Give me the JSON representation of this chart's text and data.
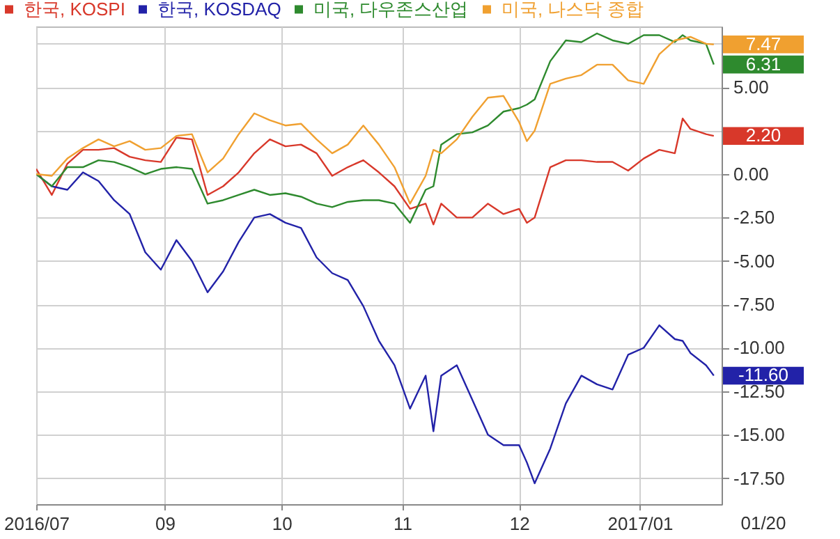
{
  "chart_data": {
    "type": "line",
    "x": [
      "2016-07-30",
      "2016-08-03",
      "2016-08-07",
      "2016-08-11",
      "2016-08-15",
      "2016-08-19",
      "2016-08-23",
      "2016-08-27",
      "2016-08-31",
      "2016-09-04",
      "2016-09-08",
      "2016-09-12",
      "2016-09-16",
      "2016-09-20",
      "2016-09-24",
      "2016-09-28",
      "2016-10-02",
      "2016-10-06",
      "2016-10-10",
      "2016-10-14",
      "2016-10-18",
      "2016-10-22",
      "2016-10-26",
      "2016-10-30",
      "2016-11-03",
      "2016-11-07",
      "2016-11-09",
      "2016-11-11",
      "2016-11-15",
      "2016-11-19",
      "2016-11-23",
      "2016-11-27",
      "2016-12-01",
      "2016-12-03",
      "2016-12-05",
      "2016-12-09",
      "2016-12-13",
      "2016-12-17",
      "2016-12-21",
      "2016-12-25",
      "2016-12-29",
      "2017-01-02",
      "2017-01-06",
      "2017-01-10",
      "2017-01-12",
      "2017-01-14",
      "2017-01-18",
      "2017-01-20"
    ],
    "series": [
      {
        "name": "한국, KOSPI",
        "color": "#d8382a",
        "values": [
          0.3,
          -1.2,
          0.6,
          1.4,
          1.4,
          1.5,
          1.0,
          0.8,
          0.7,
          2.1,
          2.0,
          -1.2,
          -0.7,
          0.1,
          1.2,
          2.0,
          1.6,
          1.7,
          1.2,
          -0.1,
          0.4,
          0.8,
          0.1,
          -0.7,
          -2.0,
          -1.7,
          -2.9,
          -1.7,
          -2.5,
          -2.5,
          -1.7,
          -2.3,
          -2.0,
          -2.8,
          -2.5,
          0.4,
          0.8,
          0.8,
          0.7,
          0.7,
          0.2,
          0.9,
          1.4,
          1.2,
          3.2,
          2.6,
          2.3,
          2.2
        ],
        "value_labels": [
          null,
          null,
          null,
          null,
          null,
          null,
          null,
          null,
          null,
          null,
          null,
          null,
          null,
          null,
          null,
          null,
          null,
          null,
          null,
          null,
          null,
          null,
          null,
          null,
          null,
          null,
          null,
          null,
          null,
          null,
          null,
          null,
          null,
          null,
          null,
          null,
          null,
          null,
          null,
          null,
          null,
          null,
          null,
          null,
          null,
          null,
          null,
          "2.20"
        ]
      },
      {
        "name": "한국, KOSDAQ",
        "color": "#2222a8",
        "values": [
          0,
          -0.7,
          -0.9,
          0.1,
          -0.4,
          -1.5,
          -2.3,
          -4.5,
          -5.5,
          -3.8,
          -5.0,
          -6.8,
          -5.6,
          -3.9,
          -2.5,
          -2.3,
          -2.8,
          -3.1,
          -4.8,
          -5.7,
          -6.1,
          -7.6,
          -9.6,
          -11.0,
          -13.5,
          -11.6,
          -14.8,
          -11.6,
          -11.0,
          -13.0,
          -15.0,
          -15.6,
          -15.6,
          -16.6,
          -17.8,
          -15.8,
          -13.2,
          -11.6,
          -12.1,
          -12.4,
          -10.4,
          -10.0,
          -8.7,
          -9.5,
          -9.6,
          -10.3,
          -11.0,
          -11.6
        ],
        "value_labels": [
          null,
          null,
          null,
          null,
          null,
          null,
          null,
          null,
          null,
          null,
          null,
          null,
          null,
          null,
          null,
          null,
          null,
          null,
          null,
          null,
          null,
          null,
          null,
          null,
          null,
          null,
          null,
          null,
          null,
          null,
          null,
          null,
          null,
          null,
          null,
          null,
          null,
          null,
          null,
          null,
          null,
          null,
          null,
          null,
          null,
          null,
          null,
          "-11.60"
        ]
      },
      {
        "name": "미국, 다우존스산업",
        "color": "#2e8a2e",
        "values": [
          0,
          -0.7,
          0.4,
          0.4,
          0.8,
          0.7,
          0.4,
          0,
          0.3,
          0.4,
          0.3,
          -1.7,
          -1.5,
          -1.2,
          -0.9,
          -1.2,
          -1.1,
          -1.3,
          -1.7,
          -1.9,
          -1.6,
          -1.5,
          -1.5,
          -1.7,
          -2.8,
          -0.9,
          -0.7,
          1.7,
          2.3,
          2.4,
          2.8,
          3.6,
          3.8,
          4.0,
          4.3,
          6.5,
          7.7,
          7.6,
          8.1,
          7.7,
          7.5,
          8.0,
          8.0,
          7.6,
          8.0,
          7.7,
          7.5,
          6.31
        ],
        "value_labels": [
          null,
          null,
          null,
          null,
          null,
          null,
          null,
          null,
          null,
          null,
          null,
          null,
          null,
          null,
          null,
          null,
          null,
          null,
          null,
          null,
          null,
          null,
          null,
          null,
          null,
          null,
          null,
          null,
          null,
          null,
          null,
          null,
          null,
          null,
          null,
          null,
          null,
          null,
          null,
          null,
          null,
          null,
          null,
          null,
          null,
          null,
          null,
          "6.31"
        ]
      },
      {
        "name": "미국, 나스닥 종합",
        "color": "#f0a030",
        "values": [
          0,
          -0.1,
          0.9,
          1.5,
          2.0,
          1.6,
          1.9,
          1.4,
          1.5,
          2.2,
          2.3,
          0.1,
          0.9,
          2.3,
          3.5,
          3.1,
          2.8,
          2.9,
          2.0,
          1.2,
          1.7,
          2.8,
          1.7,
          0.4,
          -1.7,
          -0.1,
          1.4,
          1.2,
          2.0,
          3.3,
          4.4,
          4.5,
          3.0,
          1.9,
          2.5,
          5.2,
          5.5,
          5.7,
          6.3,
          6.3,
          5.4,
          5.2,
          6.9,
          7.7,
          7.8,
          7.9,
          7.5,
          7.47
        ],
        "value_labels": [
          null,
          null,
          null,
          null,
          null,
          null,
          null,
          null,
          null,
          null,
          null,
          null,
          null,
          null,
          null,
          null,
          null,
          null,
          null,
          null,
          null,
          null,
          null,
          null,
          null,
          null,
          null,
          null,
          null,
          null,
          null,
          null,
          null,
          null,
          null,
          null,
          null,
          null,
          null,
          null,
          null,
          null,
          null,
          null,
          null,
          null,
          null,
          "7.47"
        ]
      }
    ],
    "xlim": [
      "2016-07-30",
      "2017-01-22"
    ],
    "xticks": [
      {
        "value": "2016-07-30",
        "label": "2016/07"
      },
      {
        "value": "2016-09-01",
        "label": "09"
      },
      {
        "value": "2016-10-01",
        "label": "10"
      },
      {
        "value": "2016-11-01",
        "label": "11"
      },
      {
        "value": "2016-12-01",
        "label": "12"
      },
      {
        "value": "2017-01-01",
        "label": "2017/01"
      }
    ],
    "ylim": [
      -19,
      8.5
    ],
    "yticks": [
      {
        "value": 7.5,
        "label": null
      },
      {
        "value": 5,
        "label": "5.00"
      },
      {
        "value": 2.5,
        "label": null
      },
      {
        "value": 0,
        "label": "0.00"
      },
      {
        "value": -2.5,
        "label": "-2.50"
      },
      {
        "value": -5,
        "label": "-5.00"
      },
      {
        "value": -7.5,
        "label": "-7.50"
      },
      {
        "value": -10,
        "label": "-10.00"
      },
      {
        "value": -12.5,
        "label": "-12.50"
      },
      {
        "value": -15,
        "label": "-15.00"
      },
      {
        "value": -17.5,
        "label": "-17.50"
      }
    ],
    "annotations": [
      "01/20"
    ],
    "grid": true,
    "legend": "top left"
  }
}
